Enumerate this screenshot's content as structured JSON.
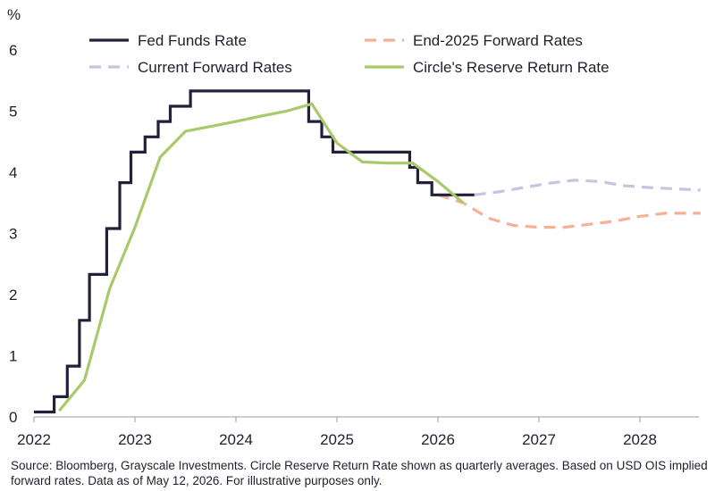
{
  "chart_data": {
    "type": "line",
    "title": "",
    "ylabel": "%",
    "xlabel": "",
    "ylim": [
      0,
      6
    ],
    "xlim": [
      2022.0,
      2028.6
    ],
    "y_ticks": [
      "0",
      "1",
      "2",
      "3",
      "4",
      "5",
      "6"
    ],
    "x_ticks": [
      {
        "value": 2022,
        "label": "2022"
      },
      {
        "value": 2023,
        "label": "2023"
      },
      {
        "value": 2024,
        "label": "2024"
      },
      {
        "value": 2025,
        "label": "2025"
      },
      {
        "value": 2026,
        "label": "2026"
      },
      {
        "value": 2027,
        "label": "2027"
      },
      {
        "value": 2028,
        "label": "2028"
      }
    ],
    "grid": false,
    "legend_position": "top",
    "series": [
      {
        "name": "Fed Funds Rate",
        "style": "step",
        "color": "#23213a",
        "dash": false,
        "points": [
          [
            2022.0,
            0.08
          ],
          [
            2022.2,
            0.08
          ],
          [
            2022.2,
            0.33
          ],
          [
            2022.33,
            0.33
          ],
          [
            2022.33,
            0.83
          ],
          [
            2022.45,
            0.83
          ],
          [
            2022.45,
            1.58
          ],
          [
            2022.55,
            1.58
          ],
          [
            2022.55,
            2.33
          ],
          [
            2022.72,
            2.33
          ],
          [
            2022.72,
            3.08
          ],
          [
            2022.85,
            3.08
          ],
          [
            2022.85,
            3.83
          ],
          [
            2022.96,
            3.83
          ],
          [
            2022.96,
            4.33
          ],
          [
            2023.1,
            4.33
          ],
          [
            2023.1,
            4.58
          ],
          [
            2023.23,
            4.58
          ],
          [
            2023.23,
            4.83
          ],
          [
            2023.35,
            4.83
          ],
          [
            2023.35,
            5.08
          ],
          [
            2023.55,
            5.08
          ],
          [
            2023.55,
            5.33
          ],
          [
            2024.72,
            5.33
          ],
          [
            2024.72,
            4.83
          ],
          [
            2024.85,
            4.83
          ],
          [
            2024.85,
            4.58
          ],
          [
            2024.96,
            4.58
          ],
          [
            2024.96,
            4.33
          ],
          [
            2025.72,
            4.33
          ],
          [
            2025.72,
            4.08
          ],
          [
            2025.8,
            4.08
          ],
          [
            2025.8,
            3.83
          ],
          [
            2025.94,
            3.83
          ],
          [
            2025.94,
            3.63
          ],
          [
            2026.36,
            3.63
          ]
        ]
      },
      {
        "name": "End-2025 Forward Rates",
        "style": "line",
        "color": "#f4b196",
        "dash": true,
        "points": [
          [
            2026.0,
            3.63
          ],
          [
            2026.25,
            3.5
          ],
          [
            2026.5,
            3.25
          ],
          [
            2026.75,
            3.13
          ],
          [
            2027.0,
            3.1
          ],
          [
            2027.25,
            3.1
          ],
          [
            2027.5,
            3.15
          ],
          [
            2027.75,
            3.2
          ],
          [
            2028.0,
            3.28
          ],
          [
            2028.25,
            3.33
          ],
          [
            2028.6,
            3.33
          ]
        ]
      },
      {
        "name": "Current Forward Rates",
        "style": "line",
        "color": "#c8c4e0",
        "dash": true,
        "points": [
          [
            2026.36,
            3.63
          ],
          [
            2026.6,
            3.68
          ],
          [
            2026.85,
            3.75
          ],
          [
            2027.1,
            3.82
          ],
          [
            2027.35,
            3.87
          ],
          [
            2027.6,
            3.85
          ],
          [
            2027.85,
            3.78
          ],
          [
            2028.1,
            3.75
          ],
          [
            2028.35,
            3.73
          ],
          [
            2028.6,
            3.71
          ]
        ]
      },
      {
        "name": "Circle's Reserve Return Rate",
        "style": "line",
        "color": "#a8c96c",
        "dash": false,
        "points": [
          [
            2022.25,
            0.1
          ],
          [
            2022.5,
            0.6
          ],
          [
            2022.75,
            2.1
          ],
          [
            2023.0,
            3.1
          ],
          [
            2023.25,
            4.25
          ],
          [
            2023.5,
            4.67
          ],
          [
            2023.75,
            4.75
          ],
          [
            2024.0,
            4.83
          ],
          [
            2024.25,
            4.92
          ],
          [
            2024.5,
            5.0
          ],
          [
            2024.75,
            5.12
          ],
          [
            2025.0,
            4.48
          ],
          [
            2025.25,
            4.17
          ],
          [
            2025.5,
            4.15
          ],
          [
            2025.75,
            4.15
          ],
          [
            2026.0,
            3.85
          ],
          [
            2026.25,
            3.5
          ]
        ]
      }
    ]
  },
  "footnote": "Source: Bloomberg, Grayscale Investments. Circle Reserve Return Rate shown as quarterly averages. Based on USD OIS implied forward rates. Data as of May 12, 2026. For illustrative purposes only."
}
